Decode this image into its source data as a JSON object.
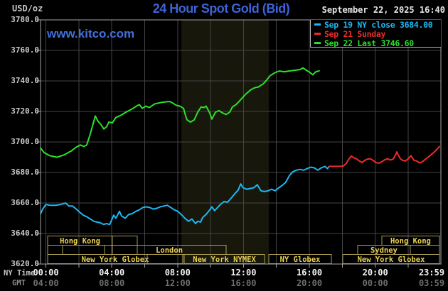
{
  "header": {
    "unit": "USD/oz",
    "title": "24 Hour Spot Gold (Bid)",
    "datetime": "September 22, 2025 16:40"
  },
  "watermark": "www.kitco.com",
  "colors": {
    "title": "#3e63d6",
    "watermark": "#4470dd",
    "sep19_blue": "#1db7f2",
    "sep21_red": "#ee2b2b",
    "sep22_green": "#2ce02c",
    "grid": "#454545",
    "plot_border": "#a3a3a3",
    "nymex_band": "#17170c",
    "session_border": "#ab9d4f",
    "session_text": "#e9d054"
  },
  "legend": {
    "entries": [
      {
        "color": "#1db7f2",
        "label": "Sep 19 NY close 3684.00"
      },
      {
        "color": "#ee2b2b",
        "label": "Sep 21 Sunday"
      },
      {
        "color": "#2ce02c",
        "label": "Sep 22 Last 3746.60"
      }
    ]
  },
  "axis": {
    "ny_name": "NY Time",
    "gmt_name": "GMT",
    "x_ticks": [
      {
        "t": 0,
        "ny": "00:00",
        "gmt": "04:00"
      },
      {
        "t": 4,
        "ny": "04:00",
        "gmt": "08:00"
      },
      {
        "t": 8,
        "ny": "08:00",
        "gmt": "12:00"
      },
      {
        "t": 12,
        "ny": "12:00",
        "gmt": "16:00"
      },
      {
        "t": 16,
        "ny": "16:00",
        "gmt": "20:00"
      },
      {
        "t": 20,
        "ny": "20:00",
        "gmt": "00:00"
      },
      {
        "t": 23.983,
        "ny": "23:59",
        "gmt": "03:59"
      }
    ],
    "y_ticks": [
      3780,
      3760,
      3740,
      3720,
      3700,
      3680,
      3660,
      3640,
      3620
    ]
  },
  "nymex_band": {
    "t1": 8.23,
    "t2": 13.54
  },
  "sessions": [
    {
      "row": 1,
      "t1": 0.11,
      "t2": 4.04,
      "label": "Hong Kong"
    },
    {
      "row": 1,
      "t1": 4.04,
      "t2": 5.54,
      "label": ""
    },
    {
      "row": 1,
      "t1": 20.4,
      "t2": 23.9,
      "label": "Hong Kong"
    },
    {
      "row": 2,
      "t1": 0.11,
      "t2": 1.01,
      "label": ""
    },
    {
      "row": 2,
      "t1": 1.01,
      "t2": 3.56,
      "label": ""
    },
    {
      "row": 2,
      "t1": 4.04,
      "t2": 10.95,
      "label": "London"
    },
    {
      "row": 2,
      "t1": 4.04,
      "t2": 5.55,
      "label": ""
    },
    {
      "row": 2,
      "t1": 18.93,
      "t2": 22.13,
      "label": "Sydney"
    },
    {
      "row": 2,
      "t1": 22.13,
      "t2": 23.9,
      "label": ""
    },
    {
      "row": 3,
      "t1": 0.11,
      "t2": 8.31,
      "label": "New York Globex"
    },
    {
      "row": 3,
      "t1": 0.11,
      "t2": 6.15,
      "label": ""
    },
    {
      "row": 3,
      "t1": 8.4,
      "t2": 13.28,
      "label": "New York NYMEX"
    },
    {
      "row": 3,
      "t1": 13.54,
      "t2": 17.34,
      "label": "NY Globex"
    },
    {
      "row": 3,
      "t1": 18.03,
      "t2": 23.9,
      "label": "New York Globex"
    }
  ],
  "chart_data": {
    "type": "line",
    "title": "24 Hour Spot Gold (Bid)",
    "xlabel": "NY Time (hours)",
    "ylabel": "USD/oz",
    "xlim": [
      -0.33,
      23.983
    ],
    "ylim": [
      3620,
      3780
    ],
    "grid": true,
    "legend_position": "top-right",
    "series": [
      {
        "name": "Sep 22 Last 3746.60",
        "color": "#2ce02c",
        "points": [
          [
            -0.32,
            3696
          ],
          [
            -0.11,
            3693
          ],
          [
            0.23,
            3691
          ],
          [
            0.67,
            3690
          ],
          [
            1.1,
            3691.5
          ],
          [
            1.53,
            3694
          ],
          [
            1.83,
            3696.5
          ],
          [
            2.1,
            3698
          ],
          [
            2.31,
            3697
          ],
          [
            2.48,
            3698
          ],
          [
            2.69,
            3705
          ],
          [
            2.87,
            3712
          ],
          [
            3.0,
            3717
          ],
          [
            3.17,
            3713.5
          ],
          [
            3.34,
            3711.5
          ],
          [
            3.52,
            3708.5
          ],
          [
            3.69,
            3710
          ],
          [
            3.82,
            3713
          ],
          [
            4.04,
            3712.5
          ],
          [
            4.25,
            3716
          ],
          [
            4.56,
            3717.5
          ],
          [
            4.86,
            3719.5
          ],
          [
            5.21,
            3721.5
          ],
          [
            5.5,
            3723.5
          ],
          [
            5.68,
            3724.5
          ],
          [
            5.85,
            3722
          ],
          [
            6.07,
            3723.5
          ],
          [
            6.28,
            3722.5
          ],
          [
            6.62,
            3725
          ],
          [
            7.06,
            3726
          ],
          [
            7.5,
            3726.5
          ],
          [
            7.71,
            3725.5
          ],
          [
            7.92,
            3724
          ],
          [
            8.13,
            3723.5
          ],
          [
            8.36,
            3722
          ],
          [
            8.49,
            3717
          ],
          [
            8.57,
            3714.5
          ],
          [
            8.78,
            3713
          ],
          [
            9.01,
            3714.5
          ],
          [
            9.22,
            3719.5
          ],
          [
            9.43,
            3723
          ],
          [
            9.6,
            3722.5
          ],
          [
            9.73,
            3723.5
          ],
          [
            9.95,
            3719
          ],
          [
            10.08,
            3715
          ],
          [
            10.3,
            3719.5
          ],
          [
            10.51,
            3720.5
          ],
          [
            10.73,
            3719
          ],
          [
            10.95,
            3718
          ],
          [
            11.16,
            3719.5
          ],
          [
            11.33,
            3723
          ],
          [
            11.55,
            3724.5
          ],
          [
            11.81,
            3727.5
          ],
          [
            12.11,
            3731
          ],
          [
            12.42,
            3734
          ],
          [
            12.67,
            3735.5
          ],
          [
            12.89,
            3736
          ],
          [
            13.19,
            3738
          ],
          [
            13.41,
            3740.5
          ],
          [
            13.62,
            3743.5
          ],
          [
            13.93,
            3745.5
          ],
          [
            14.18,
            3746.5
          ],
          [
            14.48,
            3746
          ],
          [
            14.79,
            3746.5
          ],
          [
            15.13,
            3747
          ],
          [
            15.44,
            3747.5
          ],
          [
            15.61,
            3748.5
          ],
          [
            15.82,
            3747
          ],
          [
            16.04,
            3745.5
          ],
          [
            16.21,
            3744
          ],
          [
            16.39,
            3746
          ],
          [
            16.6,
            3746.6
          ]
        ]
      },
      {
        "name": "Sep 19 NY close 3684.00",
        "color": "#1db7f2",
        "points": [
          [
            -0.32,
            3653
          ],
          [
            -0.19,
            3656
          ],
          [
            0.0,
            3659
          ],
          [
            0.25,
            3658.5
          ],
          [
            0.6,
            3658.5
          ],
          [
            0.9,
            3659
          ],
          [
            1.2,
            3660
          ],
          [
            1.4,
            3658
          ],
          [
            1.62,
            3658
          ],
          [
            1.85,
            3656
          ],
          [
            2.05,
            3654
          ],
          [
            2.27,
            3652
          ],
          [
            2.48,
            3651
          ],
          [
            2.7,
            3649.5
          ],
          [
            2.92,
            3648
          ],
          [
            3.1,
            3647.5
          ],
          [
            3.3,
            3647
          ],
          [
            3.5,
            3646
          ],
          [
            3.7,
            3646.5
          ],
          [
            3.87,
            3645.8
          ],
          [
            4.02,
            3649.5
          ],
          [
            4.12,
            3652
          ],
          [
            4.25,
            3650
          ],
          [
            4.47,
            3654.5
          ],
          [
            4.6,
            3651.5
          ],
          [
            4.82,
            3650
          ],
          [
            5.03,
            3652.5
          ],
          [
            5.24,
            3653
          ],
          [
            5.46,
            3654.5
          ],
          [
            5.67,
            3655.5
          ],
          [
            5.88,
            3657
          ],
          [
            6.1,
            3657.5
          ],
          [
            6.31,
            3657
          ],
          [
            6.52,
            3656
          ],
          [
            6.73,
            3656.5
          ],
          [
            6.95,
            3657.5
          ],
          [
            7.16,
            3658
          ],
          [
            7.37,
            3658.5
          ],
          [
            7.59,
            3657
          ],
          [
            7.8,
            3655.5
          ],
          [
            8.01,
            3654.5
          ],
          [
            8.22,
            3652.5
          ],
          [
            8.44,
            3650
          ],
          [
            8.66,
            3648
          ],
          [
            8.87,
            3649.5
          ],
          [
            9.09,
            3646.5
          ],
          [
            9.22,
            3648
          ],
          [
            9.39,
            3647.5
          ],
          [
            9.52,
            3650.5
          ],
          [
            9.73,
            3652.5
          ],
          [
            9.95,
            3655.5
          ],
          [
            10.08,
            3657.5
          ],
          [
            10.25,
            3655
          ],
          [
            10.38,
            3656.5
          ],
          [
            10.6,
            3659
          ],
          [
            10.82,
            3661
          ],
          [
            11.03,
            3660.5
          ],
          [
            11.24,
            3663
          ],
          [
            11.47,
            3666
          ],
          [
            11.68,
            3668.5
          ],
          [
            11.83,
            3672.5
          ],
          [
            11.98,
            3670
          ],
          [
            12.19,
            3669
          ],
          [
            12.41,
            3669.5
          ],
          [
            12.63,
            3670
          ],
          [
            12.84,
            3672
          ],
          [
            13.06,
            3668
          ],
          [
            13.28,
            3667.5
          ],
          [
            13.49,
            3668
          ],
          [
            13.7,
            3669
          ],
          [
            13.92,
            3668
          ],
          [
            14.14,
            3670
          ],
          [
            14.35,
            3671.5
          ],
          [
            14.56,
            3673.5
          ],
          [
            14.79,
            3678
          ],
          [
            15.0,
            3680.5
          ],
          [
            15.21,
            3681.5
          ],
          [
            15.44,
            3682
          ],
          [
            15.65,
            3681.5
          ],
          [
            15.86,
            3682.5
          ],
          [
            16.08,
            3683.5
          ],
          [
            16.3,
            3683
          ],
          [
            16.51,
            3681.5
          ],
          [
            16.72,
            3683
          ],
          [
            16.95,
            3684
          ],
          [
            17.1,
            3682.5
          ],
          [
            17.2,
            3684
          ]
        ]
      },
      {
        "name": "Sep 21 Sunday",
        "color": "#ee2b2b",
        "points": [
          [
            17.2,
            3684
          ],
          [
            17.51,
            3684
          ],
          [
            17.81,
            3684
          ],
          [
            18.06,
            3684.2
          ],
          [
            18.25,
            3686
          ],
          [
            18.38,
            3688.5
          ],
          [
            18.55,
            3690.8
          ],
          [
            18.72,
            3689.5
          ],
          [
            18.89,
            3688.8
          ],
          [
            19.02,
            3687.6
          ],
          [
            19.2,
            3686.6
          ],
          [
            19.37,
            3688
          ],
          [
            19.54,
            3688.8
          ],
          [
            19.71,
            3689
          ],
          [
            19.88,
            3687.8
          ],
          [
            20.06,
            3686.4
          ],
          [
            20.23,
            3686.1
          ],
          [
            20.4,
            3687
          ],
          [
            20.57,
            3688.3
          ],
          [
            20.75,
            3689
          ],
          [
            20.92,
            3688.2
          ],
          [
            21.09,
            3688.8
          ],
          [
            21.26,
            3692
          ],
          [
            21.31,
            3693.5
          ],
          [
            21.4,
            3691.5
          ],
          [
            21.53,
            3689
          ],
          [
            21.66,
            3688
          ],
          [
            21.83,
            3687.5
          ],
          [
            22.0,
            3689
          ],
          [
            22.17,
            3691
          ],
          [
            22.35,
            3688
          ],
          [
            22.52,
            3687.5
          ],
          [
            22.69,
            3686.3
          ],
          [
            22.86,
            3687
          ],
          [
            23.03,
            3688.5
          ],
          [
            23.21,
            3690
          ],
          [
            23.38,
            3691.5
          ],
          [
            23.55,
            3693
          ],
          [
            23.72,
            3695
          ],
          [
            23.9,
            3697
          ]
        ]
      }
    ]
  }
}
